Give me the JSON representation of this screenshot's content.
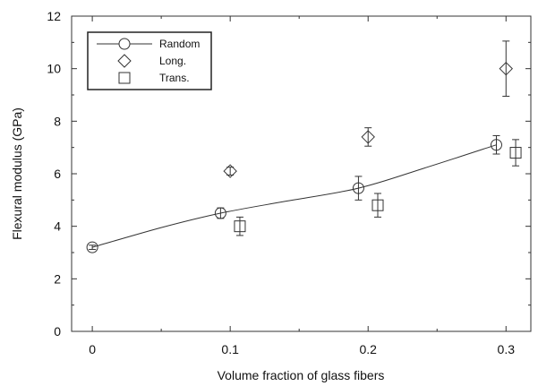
{
  "chart_data": {
    "type": "scatter",
    "xlabel": "Volume fraction of glass fibers",
    "ylabel": "Flexural modulus (GPa)",
    "xlim": [
      -0.015,
      0.318
    ],
    "ylim": [
      0,
      12
    ],
    "x_ticks": [
      0,
      0.1,
      0.2,
      0.3
    ],
    "x_tick_labels": [
      "0",
      "0.1",
      "0.2",
      "0.3"
    ],
    "y_ticks": [
      0,
      2,
      4,
      6,
      8,
      10,
      12
    ],
    "y_tick_labels": [
      "0",
      "2",
      "4",
      "6",
      "8",
      "10",
      "12"
    ],
    "grid": false,
    "legend_position": "top-left",
    "series": [
      {
        "name": "Random",
        "marker": "circle",
        "line": true,
        "points": [
          {
            "x": 0.0,
            "y": 3.2,
            "err": 0.08
          },
          {
            "x": 0.093,
            "y": 4.5,
            "err": 0.2
          },
          {
            "x": 0.193,
            "y": 5.45,
            "err": 0.45
          },
          {
            "x": 0.293,
            "y": 7.1,
            "err": 0.35
          }
        ],
        "fit_curve": [
          [
            0.0,
            3.2
          ],
          [
            0.05,
            3.95
          ],
          [
            0.093,
            4.5
          ],
          [
            0.14,
            4.95
          ],
          [
            0.193,
            5.45
          ],
          [
            0.24,
            6.2
          ],
          [
            0.293,
            7.1
          ]
        ]
      },
      {
        "name": "Long.",
        "marker": "diamond",
        "line": false,
        "points": [
          {
            "x": 0.1,
            "y": 6.1,
            "err": 0.15
          },
          {
            "x": 0.2,
            "y": 7.4,
            "err": 0.35
          },
          {
            "x": 0.3,
            "y": 10.0,
            "err": 1.05
          }
        ]
      },
      {
        "name": "Trans.",
        "marker": "square",
        "line": false,
        "points": [
          {
            "x": 0.107,
            "y": 4.0,
            "err": 0.35
          },
          {
            "x": 0.207,
            "y": 4.8,
            "err": 0.45
          },
          {
            "x": 0.307,
            "y": 6.8,
            "err": 0.5
          }
        ]
      }
    ]
  }
}
